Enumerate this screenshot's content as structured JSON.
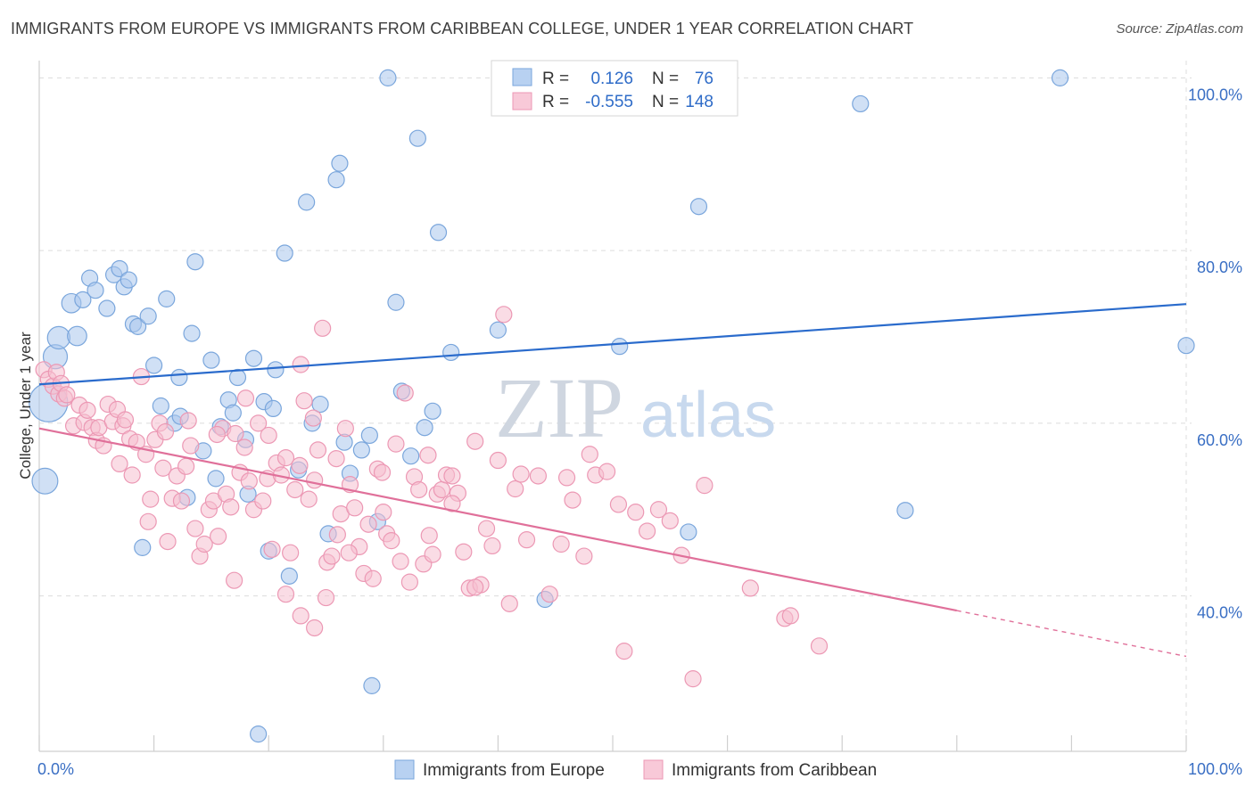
{
  "chart_data": {
    "type": "scatter",
    "title": "IMMIGRANTS FROM EUROPE VS IMMIGRANTS FROM CARIBBEAN COLLEGE, UNDER 1 YEAR CORRELATION CHART",
    "source": "Source: ZipAtlas.com",
    "ylabel": "College, Under 1 year",
    "xlabel": "",
    "xlim": [
      0,
      100
    ],
    "ylim": [
      22,
      102
    ],
    "x_tick_labels": [
      "0.0%",
      "100.0%"
    ],
    "y_ticks": [
      {
        "value": 40,
        "label": "40.0%"
      },
      {
        "value": 60,
        "label": "60.0%"
      },
      {
        "value": 80,
        "label": "80.0%"
      },
      {
        "value": 100,
        "label": "100.0%"
      }
    ],
    "grid": true,
    "watermark": {
      "zip": "ZIP",
      "atlas": "atlas"
    },
    "legend": {
      "r_label": "R =",
      "n_label": "N =",
      "entries": [
        {
          "r": "0.126",
          "n": "76"
        },
        {
          "r": "-0.555",
          "n": "148"
        }
      ]
    },
    "series": [
      {
        "name": "Immigrants from Europe",
        "color": "#a9c6ec",
        "stroke": "#7aa6dc",
        "line_color": "#2a6bcc",
        "trend": {
          "x0": 0,
          "y0": 64.5,
          "x1": 100,
          "y1": 73.8
        },
        "points": [
          [
            0.5,
            53.3,
            1.6
          ],
          [
            0.8,
            62.4,
            2.4
          ],
          [
            1.4,
            67.7,
            1.5
          ],
          [
            1.7,
            69.9,
            1.4
          ],
          [
            3.3,
            70.1,
            1.2
          ],
          [
            2.8,
            73.9,
            1.2
          ],
          [
            3.8,
            74.3,
            1.0
          ],
          [
            4.4,
            76.8,
            1.0
          ],
          [
            4.9,
            75.4,
            1.0
          ],
          [
            5.9,
            73.3,
            1.0
          ],
          [
            6.5,
            77.2,
            1.0
          ],
          [
            7.0,
            77.9,
            1.0
          ],
          [
            7.4,
            75.8,
            1.0
          ],
          [
            7.8,
            76.6,
            1.0
          ],
          [
            8.2,
            71.5,
            1.0
          ],
          [
            8.6,
            71.2,
            1.0
          ],
          [
            9.5,
            72.4,
            1.0
          ],
          [
            10.0,
            66.7,
            1.0
          ],
          [
            10.6,
            62.0,
            1.0
          ],
          [
            11.1,
            74.4,
            1.0
          ],
          [
            12.2,
            65.3,
            1.0
          ],
          [
            11.8,
            60.0,
            1.0
          ],
          [
            12.3,
            60.8,
            1.0
          ],
          [
            12.9,
            51.4,
            1.0
          ],
          [
            13.3,
            70.4,
            1.0
          ],
          [
            13.6,
            78.7,
            1.0
          ],
          [
            14.3,
            56.8,
            1.0
          ],
          [
            15.0,
            67.3,
            1.0
          ],
          [
            15.4,
            53.6,
            1.0
          ],
          [
            15.8,
            59.6,
            1.0
          ],
          [
            16.5,
            62.7,
            1.0
          ],
          [
            16.9,
            61.2,
            1.0
          ],
          [
            17.3,
            65.3,
            1.0
          ],
          [
            18.0,
            58.1,
            1.0
          ],
          [
            18.7,
            67.5,
            1.0
          ],
          [
            19.1,
            24.0,
            1.0
          ],
          [
            19.6,
            62.5,
            1.0
          ],
          [
            20.0,
            45.2,
            1.0
          ],
          [
            20.4,
            61.7,
            1.0
          ],
          [
            20.6,
            66.2,
            1.0
          ],
          [
            21.4,
            79.7,
            1.0
          ],
          [
            22.6,
            54.6,
            1.0
          ],
          [
            23.3,
            85.6,
            1.0
          ],
          [
            24.5,
            62.2,
            1.0
          ],
          [
            25.2,
            47.2,
            1.0
          ],
          [
            25.9,
            88.2,
            1.0
          ],
          [
            26.2,
            90.1,
            1.0
          ],
          [
            26.6,
            57.8,
            1.0
          ],
          [
            27.1,
            54.2,
            1.0
          ],
          [
            28.1,
            56.9,
            1.0
          ],
          [
            28.8,
            58.6,
            1.0
          ],
          [
            29.5,
            48.6,
            1.0
          ],
          [
            29.0,
            29.6,
            1.0
          ],
          [
            30.4,
            100.0,
            1.0
          ],
          [
            31.1,
            74.0,
            1.0
          ],
          [
            31.6,
            63.7,
            1.0
          ],
          [
            32.4,
            56.2,
            1.0
          ],
          [
            33.0,
            93.0,
            1.0
          ],
          [
            33.6,
            59.5,
            1.0
          ],
          [
            34.3,
            61.4,
            1.0
          ],
          [
            34.8,
            82.1,
            1.0
          ],
          [
            35.9,
            68.2,
            1.0
          ],
          [
            21.8,
            42.3,
            1.0
          ],
          [
            40.0,
            70.8,
            1.0
          ],
          [
            44.1,
            39.6,
            1.0
          ],
          [
            47.6,
            100.0,
            1.0
          ],
          [
            50.6,
            68.9,
            1.0
          ],
          [
            56.6,
            47.4,
            1.0
          ],
          [
            57.5,
            85.1,
            1.0
          ],
          [
            71.6,
            97.0,
            1.0
          ],
          [
            75.5,
            49.9,
            1.0
          ],
          [
            89.0,
            100.0,
            1.0
          ],
          [
            100.0,
            69.0,
            1.0
          ],
          [
            18.2,
            51.8,
            1.0
          ],
          [
            23.8,
            60.0,
            1.0
          ],
          [
            9.0,
            45.6,
            1.0
          ]
        ]
      },
      {
        "name": "Immigrants from Caribbean",
        "color": "#f6bfd0",
        "stroke": "#ec98b4",
        "line_color": "#e0709a",
        "trend": {
          "x0": 0,
          "y0": 59.4,
          "x1": 80,
          "y1": 38.3
        },
        "trend_dashed": {
          "x0": 80,
          "y0": 38.3,
          "x1": 100,
          "y1": 33.0
        },
        "points": [
          [
            0.4,
            66.2,
            1.0
          ],
          [
            0.8,
            65.1,
            1.0
          ],
          [
            1.2,
            64.3,
            1.0
          ],
          [
            1.5,
            65.9,
            1.0
          ],
          [
            1.7,
            63.4,
            1.0
          ],
          [
            1.9,
            64.6,
            1.0
          ],
          [
            2.2,
            62.9,
            1.0
          ],
          [
            2.4,
            63.3,
            1.0
          ],
          [
            3.0,
            59.7,
            1.0
          ],
          [
            3.5,
            62.1,
            1.0
          ],
          [
            3.9,
            60.1,
            1.0
          ],
          [
            4.2,
            61.5,
            1.0
          ],
          [
            4.6,
            59.5,
            1.0
          ],
          [
            5.0,
            58.0,
            1.0
          ],
          [
            5.2,
            59.5,
            1.0
          ],
          [
            5.6,
            57.4,
            1.0
          ],
          [
            6.0,
            62.2,
            1.0
          ],
          [
            6.4,
            60.2,
            1.0
          ],
          [
            6.8,
            61.6,
            1.0
          ],
          [
            7.3,
            59.7,
            1.0
          ],
          [
            7.5,
            60.4,
            1.0
          ],
          [
            7.9,
            58.2,
            1.0
          ],
          [
            8.1,
            54.0,
            1.0
          ],
          [
            8.5,
            57.8,
            1.0
          ],
          [
            8.9,
            65.4,
            1.0
          ],
          [
            9.3,
            56.4,
            1.0
          ],
          [
            9.7,
            51.2,
            1.0
          ],
          [
            10.1,
            58.1,
            1.0
          ],
          [
            10.5,
            60.0,
            1.0
          ],
          [
            10.8,
            54.8,
            1.0
          ],
          [
            11.2,
            46.3,
            1.0
          ],
          [
            11.6,
            51.3,
            1.0
          ],
          [
            12.0,
            53.9,
            1.0
          ],
          [
            12.4,
            51.0,
            1.0
          ],
          [
            12.8,
            55.0,
            1.0
          ],
          [
            13.2,
            57.4,
            1.0
          ],
          [
            13.6,
            47.8,
            1.0
          ],
          [
            14.0,
            44.6,
            1.0
          ],
          [
            14.4,
            46.0,
            1.0
          ],
          [
            14.8,
            50.0,
            1.0
          ],
          [
            15.2,
            51.0,
            1.0
          ],
          [
            15.6,
            46.9,
            1.0
          ],
          [
            16.0,
            59.4,
            1.0
          ],
          [
            16.3,
            51.8,
            1.0
          ],
          [
            16.7,
            50.3,
            1.0
          ],
          [
            17.1,
            58.8,
            1.0
          ],
          [
            17.5,
            54.3,
            1.0
          ],
          [
            17.9,
            57.2,
            1.0
          ],
          [
            18.3,
            53.3,
            1.0
          ],
          [
            18.7,
            50.0,
            1.0
          ],
          [
            19.1,
            60.0,
            1.0
          ],
          [
            19.5,
            51.0,
            1.0
          ],
          [
            19.9,
            53.6,
            1.0
          ],
          [
            20.3,
            45.4,
            1.0
          ],
          [
            20.7,
            55.4,
            1.0
          ],
          [
            21.1,
            54.0,
            1.0
          ],
          [
            21.5,
            56.0,
            1.0
          ],
          [
            21.9,
            45.0,
            1.0
          ],
          [
            22.3,
            52.3,
            1.0
          ],
          [
            22.7,
            55.1,
            1.0
          ],
          [
            23.1,
            62.6,
            1.0
          ],
          [
            23.5,
            51.2,
            1.0
          ],
          [
            23.9,
            60.6,
            1.0
          ],
          [
            24.3,
            56.9,
            1.0
          ],
          [
            24.7,
            71.0,
            1.0
          ],
          [
            25.1,
            43.9,
            1.0
          ],
          [
            25.5,
            44.6,
            1.0
          ],
          [
            25.9,
            55.9,
            1.0
          ],
          [
            26.3,
            49.5,
            1.0
          ],
          [
            26.7,
            59.4,
            1.0
          ],
          [
            27.1,
            52.9,
            1.0
          ],
          [
            27.5,
            50.2,
            1.0
          ],
          [
            27.9,
            45.7,
            1.0
          ],
          [
            28.3,
            42.6,
            1.0
          ],
          [
            28.7,
            48.3,
            1.0
          ],
          [
            29.1,
            42.0,
            1.0
          ],
          [
            29.5,
            54.7,
            1.0
          ],
          [
            29.9,
            54.3,
            1.0
          ],
          [
            30.3,
            47.2,
            1.0
          ],
          [
            30.7,
            46.4,
            1.0
          ],
          [
            31.1,
            57.6,
            1.0
          ],
          [
            31.5,
            44.0,
            1.0
          ],
          [
            31.9,
            63.5,
            1.0
          ],
          [
            32.3,
            41.6,
            1.0
          ],
          [
            32.7,
            53.8,
            1.0
          ],
          [
            33.1,
            52.3,
            1.0
          ],
          [
            33.5,
            43.7,
            1.0
          ],
          [
            33.9,
            56.3,
            1.0
          ],
          [
            34.3,
            44.8,
            1.0
          ],
          [
            34.7,
            51.8,
            1.0
          ],
          [
            35.1,
            52.3,
            1.0
          ],
          [
            35.5,
            54.0,
            1.0
          ],
          [
            36.0,
            53.9,
            1.0
          ],
          [
            36.5,
            51.9,
            1.0
          ],
          [
            37.0,
            45.1,
            1.0
          ],
          [
            37.5,
            40.9,
            1.0
          ],
          [
            38.0,
            57.9,
            1.0
          ],
          [
            38.5,
            41.3,
            1.0
          ],
          [
            39.0,
            47.8,
            1.0
          ],
          [
            39.5,
            45.8,
            1.0
          ],
          [
            40.0,
            55.7,
            1.0
          ],
          [
            40.5,
            72.6,
            1.0
          ],
          [
            41.0,
            39.1,
            1.0
          ],
          [
            41.5,
            52.4,
            1.0
          ],
          [
            42.0,
            54.1,
            1.0
          ],
          [
            42.5,
            46.5,
            1.0
          ],
          [
            43.5,
            53.9,
            1.0
          ],
          [
            44.5,
            40.2,
            1.0
          ],
          [
            45.5,
            46.0,
            1.0
          ],
          [
            46.0,
            53.7,
            1.0
          ],
          [
            46.5,
            51.1,
            1.0
          ],
          [
            47.5,
            44.6,
            1.0
          ],
          [
            48.0,
            56.4,
            1.0
          ],
          [
            48.5,
            54.0,
            1.0
          ],
          [
            49.5,
            54.4,
            1.0
          ],
          [
            50.5,
            50.6,
            1.0
          ],
          [
            51.0,
            33.6,
            1.0
          ],
          [
            52.0,
            49.7,
            1.0
          ],
          [
            53.0,
            47.5,
            1.0
          ],
          [
            54.0,
            50.0,
            1.0
          ],
          [
            55.0,
            48.7,
            1.0
          ],
          [
            56.0,
            44.7,
            1.0
          ],
          [
            57.0,
            30.4,
            1.0
          ],
          [
            58.0,
            52.8,
            1.0
          ],
          [
            62.0,
            40.9,
            1.0
          ],
          [
            65.0,
            37.4,
            1.0
          ],
          [
            65.5,
            37.7,
            1.0
          ],
          [
            68.0,
            34.2,
            1.0
          ],
          [
            20.0,
            58.6,
            1.0
          ],
          [
            15.5,
            58.7,
            1.0
          ],
          [
            22.8,
            66.8,
            1.0
          ],
          [
            24.0,
            53.4,
            1.0
          ],
          [
            21.5,
            40.2,
            1.0
          ],
          [
            22.8,
            37.7,
            1.0
          ],
          [
            24.0,
            36.3,
            1.0
          ],
          [
            17.0,
            41.8,
            1.0
          ],
          [
            25.0,
            39.8,
            1.0
          ],
          [
            27.0,
            45.0,
            1.0
          ],
          [
            18.0,
            62.9,
            1.0
          ],
          [
            13.0,
            60.3,
            1.0
          ],
          [
            9.5,
            48.6,
            1.0
          ],
          [
            11.0,
            59.0,
            1.0
          ],
          [
            7.0,
            55.3,
            1.0
          ],
          [
            26.0,
            47.1,
            1.0
          ],
          [
            30.0,
            49.7,
            1.0
          ],
          [
            34.0,
            47.0,
            1.0
          ],
          [
            36.0,
            50.7,
            1.0
          ],
          [
            38.0,
            41.0,
            1.0
          ]
        ]
      }
    ]
  }
}
